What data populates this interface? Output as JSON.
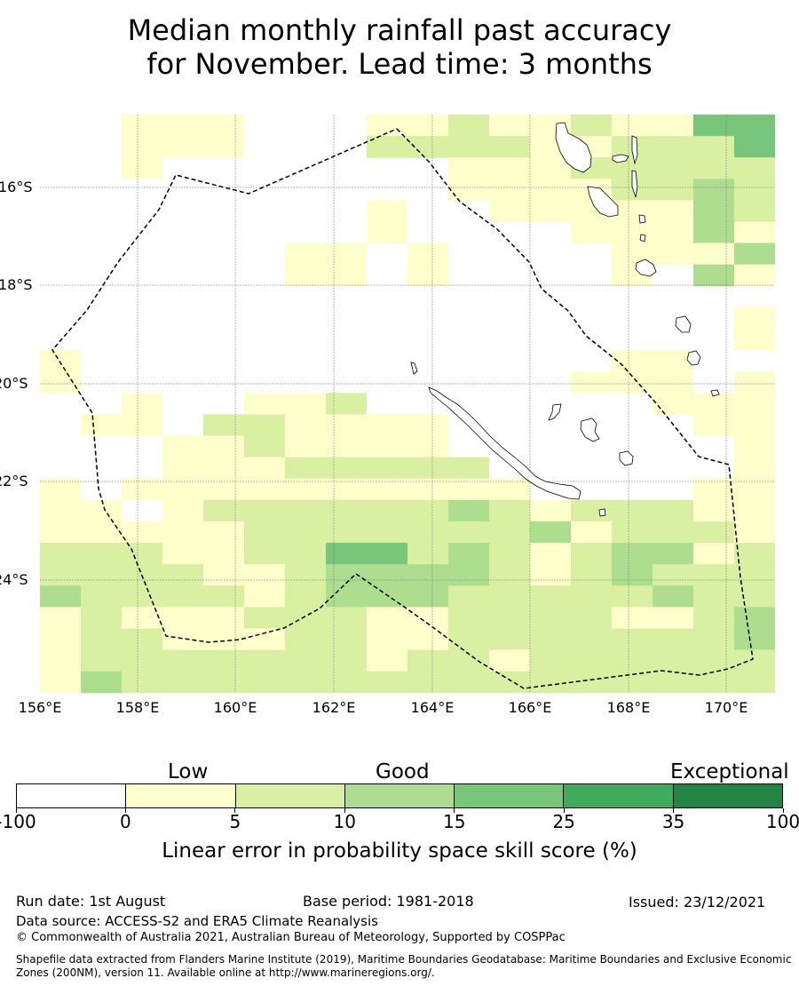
{
  "title": {
    "line1": "Median monthly rainfall past accuracy",
    "line2": "for November. Lead time: 3 months"
  },
  "map": {
    "lat_labels": [
      "16°S",
      "18°S",
      "20°S",
      "22°S",
      "24°S"
    ],
    "lon_labels": [
      "156°E",
      "158°E",
      "160°E",
      "162°E",
      "164°E",
      "166°E",
      "168°E",
      "170°E"
    ],
    "gridlines": true,
    "boundary_style": "dashed",
    "cell_values_note": ""
  },
  "legend": {
    "category_low": "Low",
    "category_good": "Good",
    "category_exceptional": "Exceptional",
    "ticks": [
      "-100",
      "0",
      "5",
      "10",
      "15",
      "25",
      "35",
      "100"
    ],
    "colors": [
      "#ffffff",
      "#ffffcc",
      "#d9f0a3",
      "#addd8e",
      "#78c679",
      "#41ab5d",
      "#238443"
    ],
    "label": "Linear error in probability space skill score (%)"
  },
  "footer": {
    "run_date": "Run date: 1st August",
    "base_period": "Base period: 1981-2018",
    "issued": "Issued: 23/12/2021",
    "data_source": "Data source: ACCESS-S2 and ERA5 Climate Reanalysis",
    "copyright": "© Commonwealth of Australia 2021, Australian Bureau of Meteorology, Supported by COSPPac",
    "shapefile": "Shapefile data extracted from Flanders Marine Institute (2019), Maritime Boundaries Geodatabase: Maritime Boundaries and Exclusive Economic Zones (200NM), version 11. Available online at http://www.marineregions.org/."
  }
}
